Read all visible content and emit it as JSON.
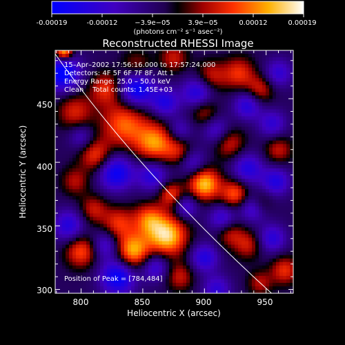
{
  "chart_data": {
    "type": "heatmap",
    "title": "Reconstructed RHESSI Image",
    "xlabel": "Heliocentric X (arcsec)",
    "ylabel": "Heliocentric Y (arcsec)",
    "xlim": [
      779,
      972
    ],
    "ylim": [
      297,
      488
    ],
    "x_ticks": [
      "800",
      "850",
      "900",
      "950"
    ],
    "y_ticks": [
      "300",
      "350",
      "400",
      "450"
    ],
    "colorbar": {
      "range": [
        -0.00019,
        0.00019
      ],
      "ticks": [
        "-0.00019",
        "-0.00012",
        "−3.9e−05",
        "3.9e−05",
        "0.00012",
        "0.00019"
      ],
      "unit_label": "(photons cm⁻² s⁻¹ asec⁻²)"
    },
    "annotations": {
      "time": "15–Apr–2002 17:56:16.000 to 17:57:24.000",
      "detectors": "Detectors: 4F 5F 6F 7F 8F, Att 1",
      "energy": "Energy Range: 25.0 – 50.0 keV",
      "clean": "Clean    Total counts: 1.45E+03",
      "peak": "Position of Peak = [784,484]"
    },
    "peak": [
      784,
      484
    ],
    "blobs": [
      {
        "x": 786,
        "y": 487,
        "v": 1.0,
        "s": 5
      },
      {
        "x": 835,
        "y": 430,
        "v": 0.7,
        "s": 13
      },
      {
        "x": 860,
        "y": 415,
        "v": 0.8,
        "s": 11
      },
      {
        "x": 880,
        "y": 408,
        "v": 0.45,
        "s": 8
      },
      {
        "x": 812,
        "y": 405,
        "v": 0.6,
        "s": 9
      },
      {
        "x": 795,
        "y": 440,
        "v": 0.5,
        "s": 10
      },
      {
        "x": 820,
        "y": 458,
        "v": 0.55,
        "s": 9
      },
      {
        "x": 845,
        "y": 475,
        "v": 0.4,
        "s": 9
      },
      {
        "x": 875,
        "y": 482,
        "v": 0.45,
        "s": 8
      },
      {
        "x": 905,
        "y": 467,
        "v": 0.5,
        "s": 9
      },
      {
        "x": 928,
        "y": 470,
        "v": 0.55,
        "s": 9
      },
      {
        "x": 945,
        "y": 457,
        "v": 0.5,
        "s": 8
      },
      {
        "x": 900,
        "y": 440,
        "v": 0.45,
        "s": 8
      },
      {
        "x": 920,
        "y": 415,
        "v": 0.5,
        "s": 9
      },
      {
        "x": 960,
        "y": 410,
        "v": 0.45,
        "s": 8
      },
      {
        "x": 900,
        "y": 383,
        "v": 0.95,
        "s": 9
      },
      {
        "x": 873,
        "y": 375,
        "v": 0.6,
        "s": 7
      },
      {
        "x": 855,
        "y": 355,
        "v": 0.65,
        "s": 9
      },
      {
        "x": 830,
        "y": 352,
        "v": 0.55,
        "s": 9
      },
      {
        "x": 870,
        "y": 342,
        "v": 1.0,
        "s": 11
      },
      {
        "x": 842,
        "y": 330,
        "v": 0.9,
        "s": 10
      },
      {
        "x": 800,
        "y": 330,
        "v": 0.65,
        "s": 9
      },
      {
        "x": 810,
        "y": 363,
        "v": 0.45,
        "s": 8
      },
      {
        "x": 925,
        "y": 375,
        "v": 0.7,
        "s": 8
      },
      {
        "x": 945,
        "y": 368,
        "v": 0.5,
        "s": 7
      },
      {
        "x": 935,
        "y": 335,
        "v": 0.45,
        "s": 8
      },
      {
        "x": 920,
        "y": 345,
        "v": 0.5,
        "s": 8
      },
      {
        "x": 965,
        "y": 315,
        "v": 0.55,
        "s": 8
      },
      {
        "x": 945,
        "y": 305,
        "v": 0.4,
        "s": 7
      },
      {
        "x": 880,
        "y": 310,
        "v": 0.45,
        "s": 8
      },
      {
        "x": 795,
        "y": 385,
        "v": 0.4,
        "s": 8
      },
      {
        "x": 785,
        "y": 470,
        "v": -0.9,
        "s": 10
      },
      {
        "x": 845,
        "y": 458,
        "v": -0.9,
        "s": 10
      },
      {
        "x": 868,
        "y": 447,
        "v": -0.6,
        "s": 8
      },
      {
        "x": 895,
        "y": 455,
        "v": -0.7,
        "s": 9
      },
      {
        "x": 935,
        "y": 445,
        "v": -0.6,
        "s": 8
      },
      {
        "x": 955,
        "y": 430,
        "v": -0.5,
        "s": 8
      },
      {
        "x": 910,
        "y": 425,
        "v": -0.5,
        "s": 8
      },
      {
        "x": 880,
        "y": 425,
        "v": -0.4,
        "s": 7
      },
      {
        "x": 828,
        "y": 392,
        "v": -0.8,
        "s": 10
      },
      {
        "x": 858,
        "y": 390,
        "v": -0.6,
        "s": 9
      },
      {
        "x": 890,
        "y": 400,
        "v": -0.5,
        "s": 8
      },
      {
        "x": 935,
        "y": 395,
        "v": -0.6,
        "s": 9
      },
      {
        "x": 958,
        "y": 385,
        "v": -0.6,
        "s": 8
      },
      {
        "x": 940,
        "y": 365,
        "v": -0.7,
        "s": 8
      },
      {
        "x": 915,
        "y": 355,
        "v": -0.6,
        "s": 8
      },
      {
        "x": 885,
        "y": 365,
        "v": -0.5,
        "s": 7
      },
      {
        "x": 820,
        "y": 335,
        "v": -0.5,
        "s": 8
      },
      {
        "x": 790,
        "y": 350,
        "v": -0.6,
        "s": 9
      },
      {
        "x": 830,
        "y": 310,
        "v": -0.85,
        "s": 10
      },
      {
        "x": 860,
        "y": 318,
        "v": -0.55,
        "s": 8
      },
      {
        "x": 900,
        "y": 325,
        "v": -0.6,
        "s": 8
      },
      {
        "x": 955,
        "y": 340,
        "v": -0.55,
        "s": 8
      },
      {
        "x": 910,
        "y": 300,
        "v": -0.5,
        "s": 8
      },
      {
        "x": 960,
        "y": 470,
        "v": -0.5,
        "s": 8
      },
      {
        "x": 800,
        "y": 420,
        "v": -0.4,
        "s": 7
      }
    ]
  }
}
